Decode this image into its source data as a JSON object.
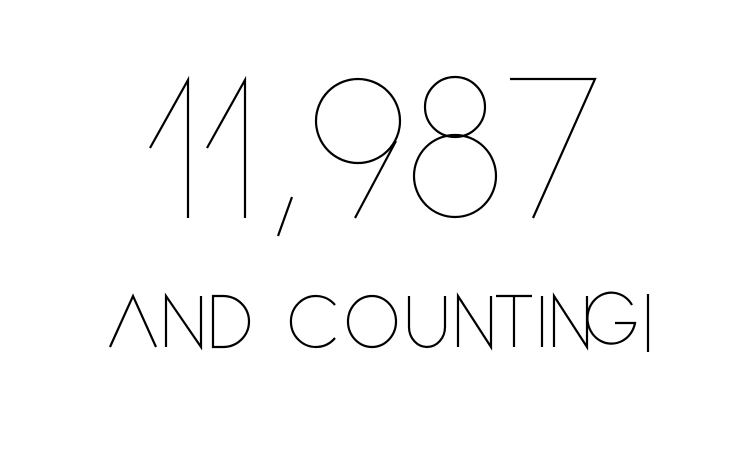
{
  "counter": {
    "value": "11,987"
  },
  "tagline": {
    "text": "AND COUNTING"
  },
  "colors": {
    "background": "#ffffff",
    "ink": "#000000"
  }
}
